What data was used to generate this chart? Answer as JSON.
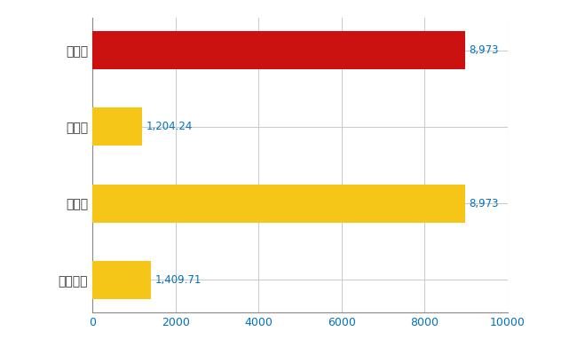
{
  "categories": [
    "全国平均",
    "県最大",
    "県平均",
    "高松市"
  ],
  "values": [
    1409.71,
    8973,
    1204.24,
    8973
  ],
  "colors": [
    "#F5C518",
    "#F5C518",
    "#F5C518",
    "#CC1111"
  ],
  "value_labels": [
    "1,409.71",
    "8,973",
    "1,204.24",
    "8,973"
  ],
  "xlim": [
    0,
    10000
  ],
  "xticks": [
    0,
    2000,
    4000,
    6000,
    8000,
    10000
  ],
  "background_color": "#FFFFFF",
  "grid_color": "#CCCCCC",
  "label_color": "#0070C0",
  "label_fontsize": 8.5,
  "tick_fontsize": 9,
  "ytick_fontsize": 10,
  "bar_height": 0.5
}
